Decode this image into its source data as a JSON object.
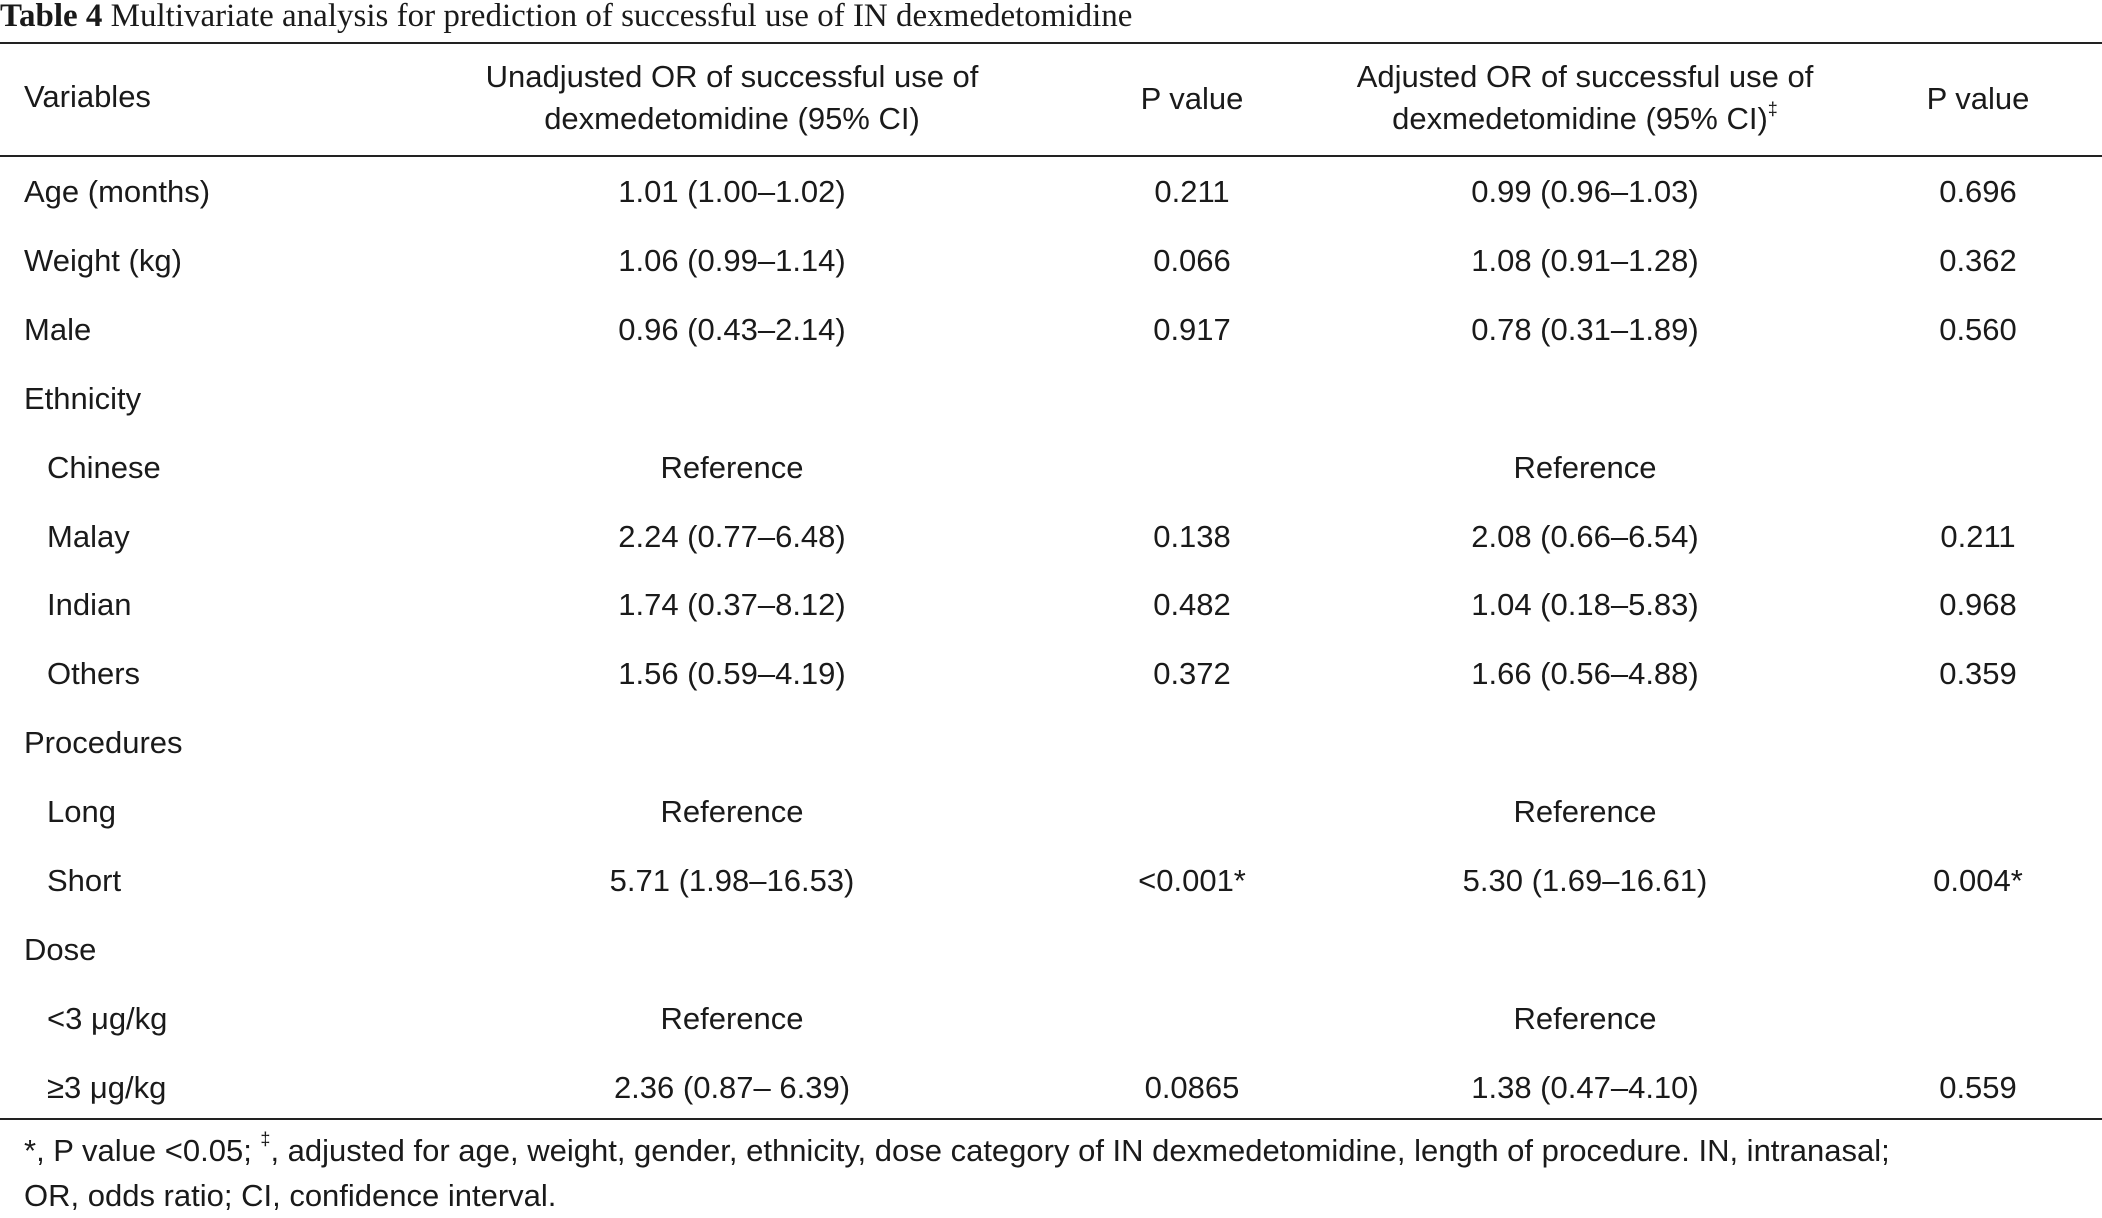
{
  "caption": {
    "label": "Table 4",
    "text": "Multivariate analysis for prediction of successful use of IN dexmedetomidine"
  },
  "table": {
    "headers": {
      "variables": "Variables",
      "unadjusted_or": [
        "Unadjusted OR of successful use of",
        "dexmedetomidine (95% CI)"
      ],
      "p_value_1": "P value",
      "adjusted_or": [
        "Adjusted OR of successful use of",
        "dexmedetomidine (95% CI)"
      ],
      "adjusted_or_marker": "‡",
      "p_value_2": "P value"
    },
    "rows": [
      {
        "variable": "Age (months)",
        "indent": false,
        "unadjusted": "1.01 (1.00–1.02)",
        "p1": "0.211",
        "adjusted": "0.99 (0.96–1.03)",
        "p2": "0.696"
      },
      {
        "variable": "Weight (kg)",
        "indent": false,
        "unadjusted": "1.06 (0.99–1.14)",
        "p1": "0.066",
        "adjusted": "1.08 (0.91–1.28)",
        "p2": "0.362"
      },
      {
        "variable": "Male",
        "indent": false,
        "unadjusted": "0.96 (0.43–2.14)",
        "p1": "0.917",
        "adjusted": "0.78 (0.31–1.89)",
        "p2": "0.560"
      },
      {
        "variable": "Ethnicity",
        "indent": false,
        "unadjusted": "",
        "p1": "",
        "adjusted": "",
        "p2": ""
      },
      {
        "variable": "Chinese",
        "indent": true,
        "unadjusted": "Reference",
        "p1": "",
        "adjusted": "Reference",
        "p2": ""
      },
      {
        "variable": "Malay",
        "indent": true,
        "unadjusted": "2.24 (0.77–6.48)",
        "p1": "0.138",
        "adjusted": "2.08 (0.66–6.54)",
        "p2": "0.211"
      },
      {
        "variable": "Indian",
        "indent": true,
        "unadjusted": "1.74 (0.37–8.12)",
        "p1": "0.482",
        "adjusted": "1.04 (0.18–5.83)",
        "p2": "0.968"
      },
      {
        "variable": "Others",
        "indent": true,
        "unadjusted": "1.56 (0.59–4.19)",
        "p1": "0.372",
        "adjusted": "1.66 (0.56–4.88)",
        "p2": "0.359"
      },
      {
        "variable": "Procedures",
        "indent": false,
        "unadjusted": "",
        "p1": "",
        "adjusted": "",
        "p2": ""
      },
      {
        "variable": "Long",
        "indent": true,
        "unadjusted": "Reference",
        "p1": "",
        "adjusted": "Reference",
        "p2": ""
      },
      {
        "variable": "Short",
        "indent": true,
        "unadjusted": "5.71 (1.98–16.53)",
        "p1": "<0.001*",
        "adjusted": "5.30 (1.69–16.61)",
        "p2": "0.004*"
      },
      {
        "variable": "Dose",
        "indent": false,
        "unadjusted": "",
        "p1": "",
        "adjusted": "",
        "p2": ""
      },
      {
        "variable": "<3 μg/kg",
        "indent": true,
        "unadjusted": "Reference",
        "p1": "",
        "adjusted": "Reference",
        "p2": ""
      },
      {
        "variable": "≥3 μg/kg",
        "indent": true,
        "unadjusted": "2.36 (0.87– 6.39)",
        "p1": "0.0865",
        "adjusted": "1.38 (0.47–4.10)",
        "p2": "0.559"
      }
    ]
  },
  "footnote": {
    "star_marker": "*",
    "star_text": ", P value <0.05; ",
    "dagger_marker": "‡",
    "dagger_text": ", adjusted for age, weight, gender, ethnicity, dose category of IN dexmedetomidine, length of procedure. IN, intranasal;",
    "line2": "OR, odds ratio; CI, confidence interval."
  }
}
